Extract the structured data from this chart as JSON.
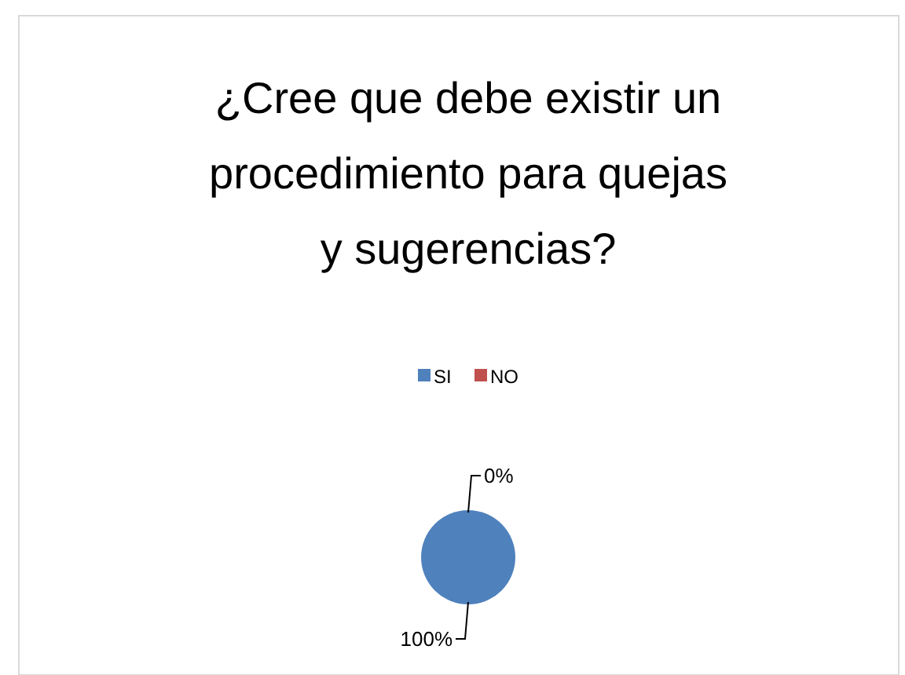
{
  "chart_data": {
    "type": "pie",
    "title": "¿Cree que debe existir un procedimiento para quejas y sugerencias?",
    "categories": [
      "SI",
      "NO"
    ],
    "values": [
      100,
      0
    ],
    "colors": [
      "#4f81bd",
      "#c0504d"
    ],
    "value_labels": [
      "100%",
      "0%"
    ],
    "legend": "top"
  }
}
